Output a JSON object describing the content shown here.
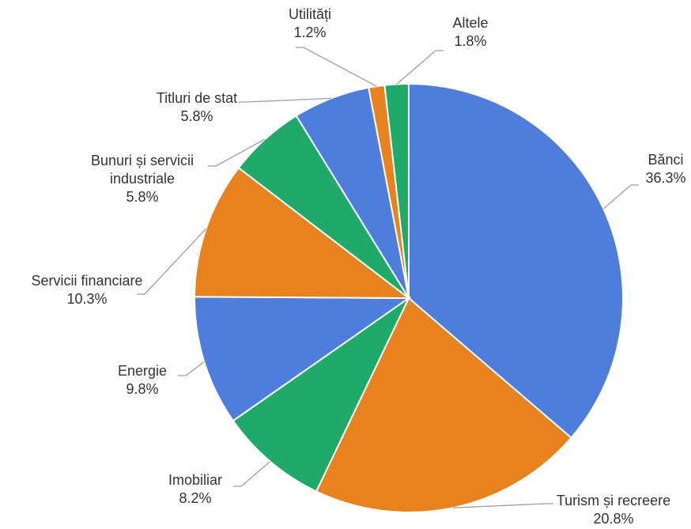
{
  "chart_data": {
    "type": "pie",
    "start_angle_deg": 0,
    "direction": "clockwise",
    "slices": [
      {
        "label": "Bănci",
        "value": 36.3,
        "value_text": "36.3%",
        "color": "#4e7ddb"
      },
      {
        "label": "Turism și recreere",
        "value": 20.8,
        "value_text": "20.8%",
        "color": "#e8821e"
      },
      {
        "label": "Imobiliar",
        "value": 8.2,
        "value_text": "8.2%",
        "color": "#1faa6a"
      },
      {
        "label": "Energie",
        "value": 9.8,
        "value_text": "9.8%",
        "color": "#4e7ddb"
      },
      {
        "label": "Servicii financiare",
        "value": 10.3,
        "value_text": "10.3%",
        "color": "#e8821e"
      },
      {
        "label": "Bunuri și servicii industriale",
        "label_lines": [
          "Bunuri și servicii",
          "industriale"
        ],
        "value": 5.8,
        "value_text": "5.8%",
        "color": "#1faa6a"
      },
      {
        "label": "Titluri de stat",
        "value": 5.8,
        "value_text": "5.8%",
        "color": "#4e7ddb"
      },
      {
        "label": "Utilități",
        "value": 1.2,
        "value_text": "1.2%",
        "color": "#e8821e"
      },
      {
        "label": "Altele",
        "value": 1.8,
        "value_text": "1.8%",
        "color": "#1faa6a"
      }
    ]
  }
}
